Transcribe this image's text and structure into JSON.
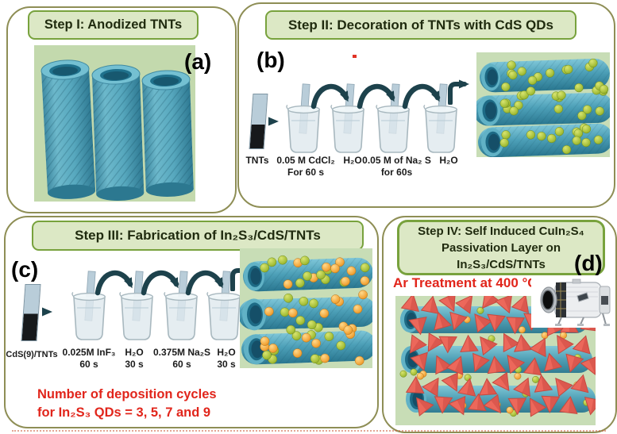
{
  "figure": {
    "panels": {
      "a": {
        "label": "(a)",
        "header": "Step I: Anodized TNTs"
      },
      "b": {
        "label": "(b)",
        "header": "Step II: Decoration of TNTs with CdS QDs",
        "sample": "TNTs",
        "beakers": [
          "0.05 M CdCl₂\nFor 60 s",
          "H₂O",
          "0.05 M of Na₂ S\nfor 60s",
          "H₂O"
        ]
      },
      "c": {
        "label": "(c)",
        "header": "Step III: Fabrication of In₂S₃/CdS/TNTs",
        "sample": "CdS(9)/TNTs",
        "beakers": [
          "0.025M InF₃\n60 s",
          "H₂O\n30 s",
          "0.375M Na₂S\n60 s",
          "H₂O\n30 s"
        ],
        "note": "Number  of deposition cycles\nfor In₂S₃ QDs = 3, 5, 7 and 9"
      },
      "d": {
        "label": "(d)",
        "header": "Step IV: Self Induced CuIn₂S₄\nPassivation Layer on\nIn₂S₃/CdS/TNTs",
        "treatment": "Ar Treatment at 400 °C"
      }
    },
    "colors": {
      "panel_border": "#8e8e55",
      "header_fill": "#dce8c5",
      "header_border": "#78a23d",
      "scene_bg": "#c8ddb6",
      "tube_teal": "#4da0b8",
      "cds_qd_green": "#a3bd36",
      "in2s3_qd_orange": "#f2a437",
      "cuin2s4_red": "#ec685b",
      "note_red": "#e1251b",
      "arrow_dark": "#1d424c"
    }
  }
}
